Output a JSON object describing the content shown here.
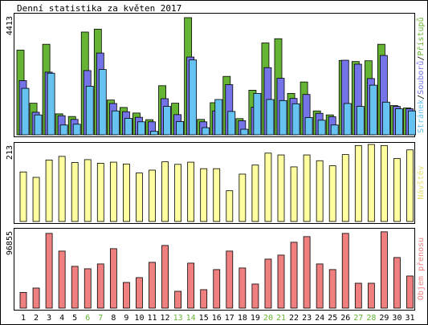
{
  "title": "Denní statistika za květen 2017",
  "colors": {
    "border": "#000000",
    "panel_bg": "#ffffff",
    "accesses": "#66b434",
    "files": "#7474e8",
    "pages": "#66c2f0",
    "visits": "#ffffa0",
    "transfer": "#f08080",
    "weekend_label": "#66b434",
    "text": "#000000"
  },
  "chart_data": [
    {
      "type": "bar",
      "title": "Denní statistika za květen 2017",
      "categories": [
        "1",
        "2",
        "3",
        "4",
        "5",
        "6",
        "7",
        "8",
        "9",
        "10",
        "11",
        "12",
        "13",
        "14",
        "15",
        "16",
        "17",
        "18",
        "19",
        "20",
        "21",
        "22",
        "23",
        "24",
        "25",
        "26",
        "27",
        "28",
        "29",
        "30",
        "31"
      ],
      "weekend_days": [
        "6",
        "7",
        "13",
        "14",
        "20",
        "21",
        "27",
        "28"
      ],
      "ymax_label": "4413",
      "ylim": [
        0,
        4413
      ],
      "ylabel_parts": [
        "Stránek",
        "Souborů",
        "Přístupů"
      ],
      "series": [
        {
          "name": "Přístupů",
          "values": [
            3190,
            1190,
            3410,
            790,
            690,
            3870,
            3980,
            1310,
            1030,
            820,
            570,
            1850,
            1190,
            4413,
            580,
            1210,
            2200,
            610,
            1680,
            3460,
            3620,
            1560,
            1990,
            900,
            750,
            2800,
            2760,
            2790,
            3410,
            1100,
            1010
          ]
        },
        {
          "name": "Souborů",
          "values": [
            2040,
            850,
            2360,
            720,
            580,
            2420,
            3080,
            1180,
            870,
            660,
            490,
            1360,
            760,
            2930,
            490,
            900,
            1890,
            530,
            1040,
            2530,
            2130,
            1370,
            1520,
            810,
            680,
            2810,
            2660,
            2120,
            2990,
            1070,
            980
          ]
        },
        {
          "name": "Stránek",
          "values": [
            1750,
            750,
            2320,
            370,
            400,
            1830,
            2460,
            900,
            620,
            490,
            130,
            1070,
            500,
            2820,
            270,
            1330,
            880,
            210,
            1560,
            1330,
            1290,
            1170,
            650,
            550,
            370,
            1180,
            1070,
            1870,
            1230,
            980,
            900
          ]
        }
      ]
    },
    {
      "type": "bar",
      "categories": [
        "1",
        "2",
        "3",
        "4",
        "5",
        "6",
        "7",
        "8",
        "9",
        "10",
        "11",
        "12",
        "13",
        "14",
        "15",
        "16",
        "17",
        "18",
        "19",
        "20",
        "21",
        "22",
        "23",
        "24",
        "25",
        "26",
        "27",
        "28",
        "29",
        "30",
        "31"
      ],
      "ymax_label": "213",
      "ylim": [
        0,
        213
      ],
      "ylabel": "Návštěv",
      "series": [
        {
          "name": "Návštěv",
          "values": [
            137,
            122,
            170,
            180,
            163,
            171,
            161,
            164,
            159,
            134,
            142,
            165,
            158,
            164,
            146,
            146,
            85,
            131,
            156,
            189,
            184,
            151,
            184,
            168,
            154,
            185,
            210,
            213,
            210,
            174,
            198
          ]
        }
      ]
    },
    {
      "type": "bar",
      "categories": [
        "1",
        "2",
        "3",
        "4",
        "5",
        "6",
        "7",
        "8",
        "9",
        "10",
        "11",
        "12",
        "13",
        "14",
        "15",
        "16",
        "17",
        "18",
        "19",
        "20",
        "21",
        "22",
        "23",
        "24",
        "25",
        "26",
        "27",
        "28",
        "29",
        "30",
        "31"
      ],
      "ymax_label": "96855",
      "ylim": [
        0,
        96855
      ],
      "ylabel": "Objem přenosu",
      "series": [
        {
          "name": "Objem přenosu",
          "values": [
            19600,
            25000,
            93000,
            71000,
            52000,
            49000,
            55000,
            74000,
            32000,
            38000,
            57000,
            78000,
            21000,
            56000,
            23000,
            48000,
            71000,
            50000,
            30000,
            61000,
            66000,
            82000,
            89000,
            55000,
            48000,
            93000,
            31000,
            31000,
            95000,
            63000,
            40000
          ]
        }
      ]
    }
  ]
}
